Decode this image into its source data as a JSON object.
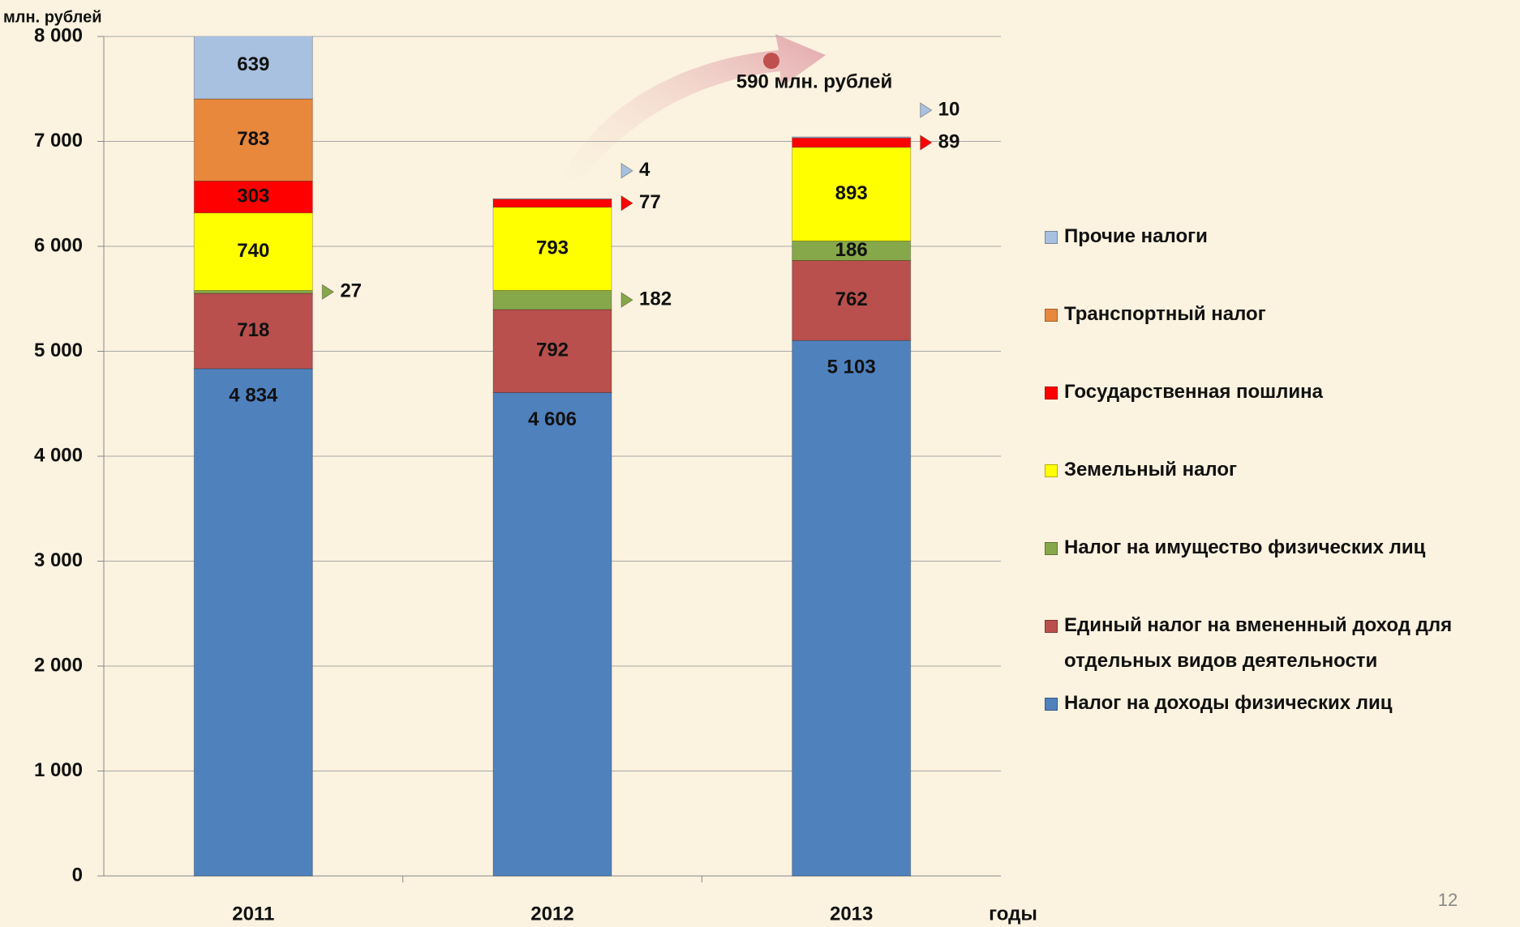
{
  "chart_data": {
    "type": "stacked_bar",
    "y_axis_label": "млн. рублей",
    "x_axis_label": "годы",
    "annotation": "590 млн. рублей",
    "page_number": "12",
    "categories": [
      "2011",
      "2012",
      "2013"
    ],
    "ylim": [
      0,
      8000
    ],
    "yticks": [
      0,
      {
        "value": 1000,
        "label": "1 000"
      },
      {
        "value": 2000,
        "label": "2 000"
      },
      {
        "value": 3000,
        "label": "3 000"
      },
      {
        "value": 4000,
        "label": "4 000"
      },
      {
        "value": 5000,
        "label": "5 000"
      },
      {
        "value": 6000,
        "label": "6 000"
      },
      {
        "value": 7000,
        "label": "7 000"
      },
      {
        "value": 8000,
        "label": "8 000"
      }
    ],
    "grid": true,
    "legend": "right",
    "series": [
      {
        "name": "Налог на доходы физических лиц",
        "color": "#4f81bd",
        "values": [
          4834,
          4606,
          5103
        ],
        "value_labels": [
          "4 834",
          "4 606",
          "5 103"
        ]
      },
      {
        "name": "Единый налог на вмененный доход для отдельных видов деятельности",
        "color": "#b9504d",
        "values": [
          718,
          792,
          762
        ]
      },
      {
        "name": "Налог на имущество физических лиц",
        "color": "#86a84a",
        "values": [
          27,
          182,
          186
        ]
      },
      {
        "name": "Земельный налог",
        "color": "#ffff00",
        "values": [
          740,
          793,
          893
        ]
      },
      {
        "name": "Государственная пошлина",
        "color": "#ff0000",
        "values": [
          303,
          77,
          89
        ]
      },
      {
        "name": "Транспортный налог",
        "color": "#e8883c",
        "values": [
          783,
          null,
          null
        ]
      },
      {
        "name": "Прочие налоги",
        "color": "#a9c1e0",
        "values": [
          639,
          4,
          10
        ]
      }
    ]
  }
}
